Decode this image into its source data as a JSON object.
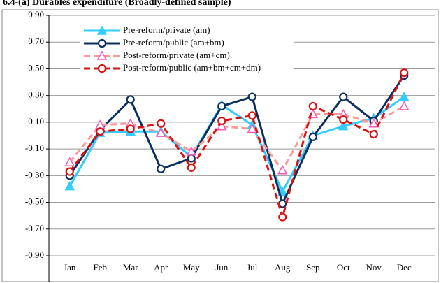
{
  "chart_data": {
    "type": "line",
    "title": "6.4-(a)  Durables expenditure (Broadly-defined sample)",
    "categories": [
      "Jan",
      "Feb",
      "Mar",
      "Apr",
      "May",
      "Jun",
      "Jul",
      "Aug",
      "Sep",
      "Oct",
      "Nov",
      "Dec"
    ],
    "ylim": [
      -0.9,
      0.9
    ],
    "yticks": [
      {
        "value": -0.9,
        "label": "-0.90"
      },
      {
        "value": -0.7,
        "label": "-0.70"
      },
      {
        "value": -0.5,
        "label": "-0.50"
      },
      {
        "value": -0.3,
        "label": "-0.30"
      },
      {
        "value": -0.1,
        "label": "-0.10"
      },
      {
        "value": 0.1,
        "label": "0.10"
      },
      {
        "value": 0.3,
        "label": "0.30"
      },
      {
        "value": 0.5,
        "label": "0.50"
      },
      {
        "value": 0.7,
        "label": "0.70"
      },
      {
        "value": 0.9,
        "label": "0.90"
      }
    ],
    "grid": true,
    "legend": "upper left",
    "series": [
      {
        "name": "Pre-reform/private (am)",
        "color": "#33ccff",
        "marker": "triangle",
        "marker_color": "#33ccff",
        "dashed": false,
        "values": [
          -0.38,
          0.02,
          0.03,
          0.03,
          -0.16,
          0.23,
          0.08,
          -0.42,
          0.0,
          0.07,
          0.13,
          0.29
        ]
      },
      {
        "name": "Pre-reform/public (am+bm)",
        "color": "#0b2f5e",
        "marker": "circle",
        "marker_color": "#0b2f5e",
        "dashed": false,
        "values": [
          -0.3,
          0.04,
          0.27,
          -0.25,
          -0.17,
          0.22,
          0.29,
          -0.51,
          -0.01,
          0.29,
          0.11,
          0.45
        ]
      },
      {
        "name": "Post-reform/private (am+cm)",
        "color": "#ff9999",
        "marker": "triangle",
        "marker_color": "#ff55bb",
        "dashed": true,
        "values": [
          -0.2,
          0.08,
          0.09,
          0.02,
          -0.12,
          0.07,
          0.05,
          -0.26,
          0.16,
          0.16,
          0.09,
          0.22
        ]
      },
      {
        "name": "Post-reform/public (am+bm+cm+dm)",
        "color": "#dd1111",
        "marker": "circle",
        "marker_color": "#dd1111",
        "dashed": true,
        "values": [
          -0.27,
          0.03,
          0.05,
          0.09,
          -0.24,
          0.11,
          0.15,
          -0.61,
          0.22,
          0.12,
          0.01,
          0.47
        ]
      }
    ]
  }
}
